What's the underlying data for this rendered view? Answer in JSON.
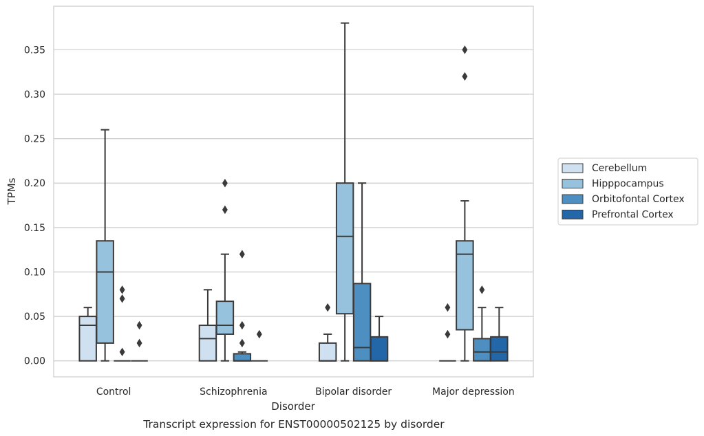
{
  "caption": "Transcript expression for ENST00000502125 by disorder",
  "chart_data": {
    "type": "box",
    "xlabel": "Disorder",
    "ylabel": "TPMs",
    "ylim": [
      -0.018,
      0.399
    ],
    "yticks": [
      0.0,
      0.05,
      0.1,
      0.15,
      0.2,
      0.25,
      0.3,
      0.35
    ],
    "ytick_labels": [
      "0.00",
      "0.05",
      "0.10",
      "0.15",
      "0.20",
      "0.25",
      "0.30",
      "0.35"
    ],
    "grid": "horizontal",
    "legend_position": "right",
    "categories": [
      "Control",
      "Schizophrenia",
      "Bipolar disorder",
      "Major depression"
    ],
    "series": [
      {
        "name": "Cerebellum",
        "color": "#cfe0f0",
        "boxes": [
          {
            "whisker_low": 0.0,
            "q1": 0.0,
            "median": 0.04,
            "q3": 0.05,
            "whisker_high": 0.06,
            "outliers": []
          },
          {
            "whisker_low": 0.0,
            "q1": 0.0,
            "median": 0.025,
            "q3": 0.04,
            "whisker_high": 0.08,
            "outliers": []
          },
          {
            "whisker_low": 0.0,
            "q1": 0.0,
            "median": 0.0,
            "q3": 0.02,
            "whisker_high": 0.03,
            "outliers": [
              0.06
            ]
          },
          {
            "whisker_low": 0.0,
            "q1": 0.0,
            "median": 0.0,
            "q3": 0.0,
            "whisker_high": 0.0,
            "outliers": [
              0.03,
              0.06
            ]
          }
        ]
      },
      {
        "name": "Hipppocampus",
        "color": "#97c2dd",
        "boxes": [
          {
            "whisker_low": 0.0,
            "q1": 0.02,
            "median": 0.1,
            "q3": 0.135,
            "whisker_high": 0.26,
            "outliers": []
          },
          {
            "whisker_low": 0.0,
            "q1": 0.03,
            "median": 0.04,
            "q3": 0.067,
            "whisker_high": 0.12,
            "outliers": [
              0.17,
              0.2
            ]
          },
          {
            "whisker_low": 0.0,
            "q1": 0.053,
            "median": 0.14,
            "q3": 0.2,
            "whisker_high": 0.38,
            "outliers": []
          },
          {
            "whisker_low": 0.0,
            "q1": 0.035,
            "median": 0.12,
            "q3": 0.135,
            "whisker_high": 0.18,
            "outliers": [
              0.32,
              0.35
            ]
          }
        ]
      },
      {
        "name": "Orbitofontal Cortex",
        "color": "#4c8fc0",
        "boxes": [
          {
            "whisker_low": 0.0,
            "q1": 0.0,
            "median": 0.0,
            "q3": 0.0,
            "whisker_high": 0.0,
            "outliers": [
              0.01,
              0.07,
              0.08
            ]
          },
          {
            "whisker_low": 0.0,
            "q1": 0.0,
            "median": 0.0,
            "q3": 0.008,
            "whisker_high": 0.01,
            "outliers": [
              0.02,
              0.04,
              0.12
            ]
          },
          {
            "whisker_low": 0.0,
            "q1": 0.0,
            "median": 0.015,
            "q3": 0.087,
            "whisker_high": 0.2,
            "outliers": []
          },
          {
            "whisker_low": 0.0,
            "q1": 0.0,
            "median": 0.01,
            "q3": 0.025,
            "whisker_high": 0.06,
            "outliers": [
              0.08
            ]
          }
        ]
      },
      {
        "name": "Prefrontal Cortex",
        "color": "#2367a8",
        "boxes": [
          {
            "whisker_low": 0.0,
            "q1": 0.0,
            "median": 0.0,
            "q3": 0.0,
            "whisker_high": 0.0,
            "outliers": [
              0.02,
              0.04
            ]
          },
          {
            "whisker_low": 0.0,
            "q1": 0.0,
            "median": 0.0,
            "q3": 0.0,
            "whisker_high": 0.0,
            "outliers": [
              0.03
            ]
          },
          {
            "whisker_low": 0.0,
            "q1": 0.0,
            "median": 0.0,
            "q3": 0.027,
            "whisker_high": 0.05,
            "outliers": []
          },
          {
            "whisker_low": 0.0,
            "q1": 0.0,
            "median": 0.01,
            "q3": 0.027,
            "whisker_high": 0.06,
            "outliers": []
          }
        ]
      }
    ]
  }
}
